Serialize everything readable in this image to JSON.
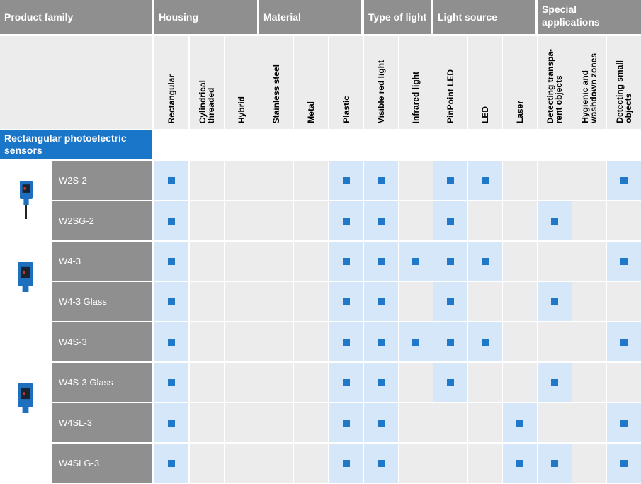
{
  "header": {
    "product_family": "Product family",
    "groups": [
      {
        "label": "Housing"
      },
      {
        "label": "Material"
      },
      {
        "label": "Type of light"
      },
      {
        "label": "Light source"
      },
      {
        "label": "Special\napplications"
      }
    ]
  },
  "columns": [
    "Rectangular",
    "Cylindrical\nthreaded",
    "Hybrid",
    "Stainless steel",
    "Metal",
    "Plastic",
    "Visible red light",
    "Infrared light",
    "PinPoint LED",
    "LED",
    "Laser",
    "Detecting transpa-\nrent objects",
    "Hygienic and\nwashdown zones",
    "Detecting small\nobjects"
  ],
  "category": "Rectangular photoelectric\nsensors",
  "rows": [
    {
      "model": "W2S-2",
      "features": [
        1,
        0,
        0,
        0,
        0,
        1,
        1,
        0,
        1,
        1,
        0,
        0,
        0,
        1
      ]
    },
    {
      "model": "W2SG-2",
      "features": [
        1,
        0,
        0,
        0,
        0,
        1,
        1,
        0,
        1,
        0,
        0,
        1,
        0,
        0
      ]
    },
    {
      "model": "W4-3",
      "features": [
        1,
        0,
        0,
        0,
        0,
        1,
        1,
        1,
        1,
        1,
        0,
        0,
        0,
        1
      ]
    },
    {
      "model": "W4-3 Glass",
      "features": [
        1,
        0,
        0,
        0,
        0,
        1,
        1,
        0,
        1,
        0,
        0,
        1,
        0,
        0
      ]
    },
    {
      "model": "W4S-3",
      "features": [
        1,
        0,
        0,
        0,
        0,
        1,
        1,
        1,
        1,
        1,
        0,
        0,
        0,
        1
      ]
    },
    {
      "model": "W4S-3 Glass",
      "features": [
        1,
        0,
        0,
        0,
        0,
        1,
        1,
        0,
        1,
        0,
        0,
        1,
        0,
        0
      ]
    },
    {
      "model": "W4SL-3",
      "features": [
        1,
        0,
        0,
        0,
        0,
        1,
        1,
        0,
        0,
        0,
        1,
        0,
        0,
        1
      ]
    },
    {
      "model": "W4SLG-3",
      "features": [
        1,
        0,
        0,
        0,
        0,
        1,
        1,
        0,
        0,
        0,
        1,
        1,
        0,
        1
      ]
    }
  ],
  "colors": {
    "header_gray": "#8f8f8f",
    "category_blue": "#1a76c9",
    "marker_blue": "#1f78c8",
    "cell_on": "#d5e7f8",
    "cell_off": "#ececec"
  }
}
